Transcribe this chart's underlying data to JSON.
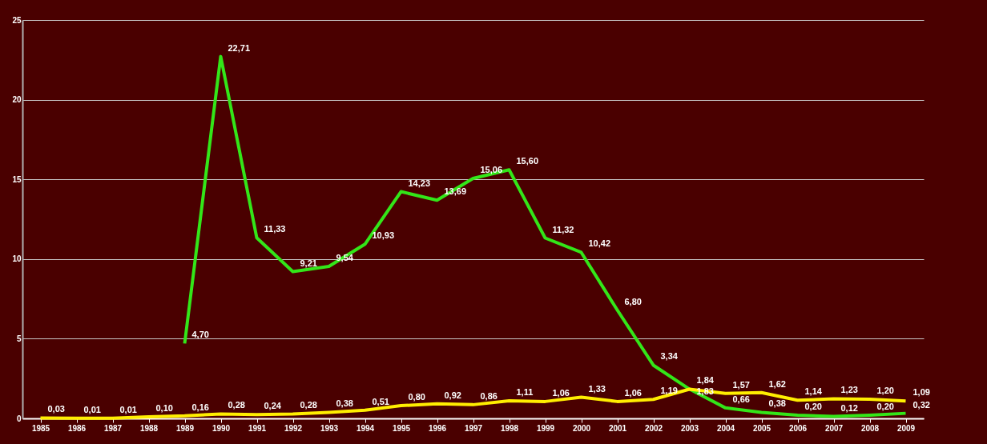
{
  "chart_data": {
    "type": "line",
    "categories": [
      "1985",
      "1986",
      "1987",
      "1988",
      "1989",
      "1990",
      "1991",
      "1992",
      "1993",
      "1994",
      "1995",
      "1996",
      "1997",
      "1998",
      "1999",
      "2000",
      "2001",
      "2002",
      "2003",
      "2004",
      "2005",
      "2006",
      "2007",
      "2008",
      "2009"
    ],
    "series": [
      {
        "color": "#33e619",
        "values": [
          null,
          null,
          null,
          null,
          4.7,
          22.71,
          11.33,
          9.21,
          9.54,
          10.93,
          14.23,
          13.69,
          15.06,
          15.6,
          11.32,
          10.42,
          6.8,
          3.34,
          1.84,
          0.66,
          0.38,
          0.2,
          0.12,
          0.2,
          0.32
        ],
        "value_labels": [
          null,
          null,
          null,
          null,
          "4,70",
          "22,71",
          "11,33",
          "9,21",
          "9,54",
          "10,93",
          "14,23",
          "13,69",
          "15,06",
          "15,60",
          "11,32",
          "10,42",
          "6,80",
          "3,34",
          "1,84",
          "0,66",
          "0,38",
          "0,20",
          "0,12",
          "0,20",
          "0,32"
        ]
      },
      {
        "color": "#ffee00",
        "values": [
          0.03,
          0.01,
          0.01,
          0.1,
          0.16,
          0.28,
          0.24,
          0.28,
          0.38,
          0.51,
          0.8,
          0.92,
          0.86,
          1.11,
          1.06,
          1.33,
          1.06,
          1.19,
          1.83,
          1.57,
          1.62,
          1.14,
          1.23,
          1.2,
          1.09
        ],
        "value_labels": [
          "0,03",
          "0,01",
          "0,01",
          "0,10",
          "0,16",
          "0,28",
          "0,24",
          "0,28",
          "0,38",
          "0,51",
          "0,80",
          "0,92",
          "0,86",
          "1,11",
          "1,06",
          "1,33",
          "1,06",
          "1,19",
          "1,83",
          "1,57",
          "1,62",
          "1,14",
          "1,23",
          "1,20",
          "1,09"
        ]
      }
    ],
    "ylim": [
      0,
      25
    ],
    "yticks": [
      0,
      5,
      10,
      15,
      20,
      25
    ],
    "grid": "y",
    "marker": "none",
    "line_style": "solid"
  }
}
